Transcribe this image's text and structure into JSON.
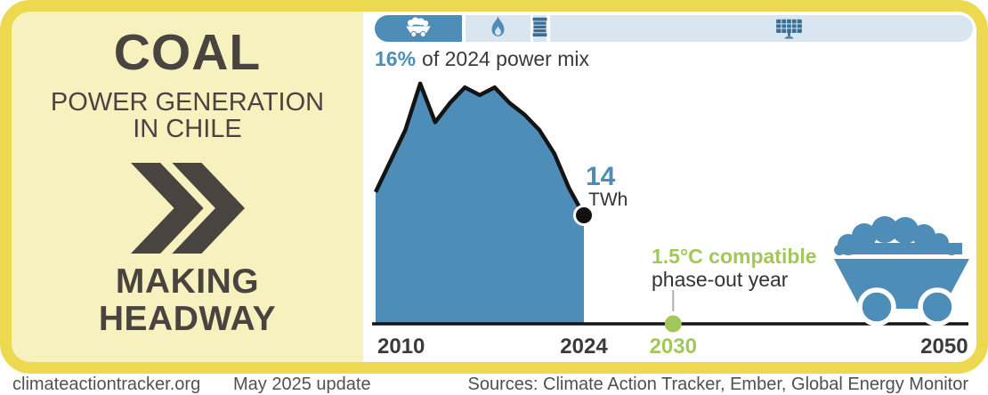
{
  "colors": {
    "border_yellow": "#ECD94F",
    "panel_yellow": "#F6F1BE",
    "blue": "#4E8DB8",
    "light_blue": "#DAE6EF",
    "icon_dark_blue": "#3A6E94",
    "green": "#A3C85A",
    "dark_text": "#4A4441",
    "line_black": "#141414"
  },
  "left_panel": {
    "title": "COAL",
    "subtitle_line1": "POWER GENERATION",
    "subtitle_line2": "IN CHILE",
    "status_line1": "MAKING",
    "status_line2": "HEADWAY"
  },
  "power_mix_bar": {
    "caption_value": "16%",
    "caption_text": "of 2024 power mix",
    "segments": [
      {
        "name": "coal",
        "icon": "coal-cart-icon",
        "share_pct": 16,
        "style": "solid-blue"
      },
      {
        "name": "gas",
        "icon": "flame-icon",
        "share_pct": 11,
        "style": "light-blue"
      },
      {
        "name": "oil",
        "icon": "barrel-icon",
        "share_pct": 2,
        "style": "light-blue"
      },
      {
        "name": "other",
        "icon": "solar-panel-icon",
        "share_pct": 71,
        "style": "light-blue"
      }
    ]
  },
  "chart_data": {
    "type": "area",
    "title": "COAL POWER GENERATION IN CHILE",
    "ylabel": "TWh",
    "years": [
      2010,
      2011,
      2012,
      2013,
      2014,
      2015,
      2016,
      2017,
      2018,
      2019,
      2020,
      2021,
      2022,
      2023,
      2024
    ],
    "values": [
      17,
      21,
      25,
      31,
      26,
      28.5,
      30.5,
      29.5,
      30.5,
      28.5,
      27,
      25,
      22,
      17.5,
      14
    ],
    "endpoint": {
      "year": 2024,
      "value": 14,
      "label": "14",
      "unit_label": "TWh"
    },
    "phase_out": {
      "year": 2030,
      "label_line1": "1.5°C compatible",
      "label_line2": "phase-out year"
    },
    "x_axis": {
      "start": 2010,
      "end": 2050,
      "ticks": [
        {
          "year": 2010,
          "label": "2010",
          "highlight": false
        },
        {
          "year": 2024,
          "label": "2024",
          "highlight": false
        },
        {
          "year": 2030,
          "label": "2030",
          "highlight": true
        },
        {
          "year": 2050,
          "label": "2050",
          "highlight": false
        }
      ]
    },
    "grid": false,
    "legend": "none"
  },
  "footer": {
    "site": "climateactiontracker.org",
    "update": "May 2025 update",
    "sources": "Sources: Climate Action Tracker, Ember, Global Energy Monitor"
  }
}
